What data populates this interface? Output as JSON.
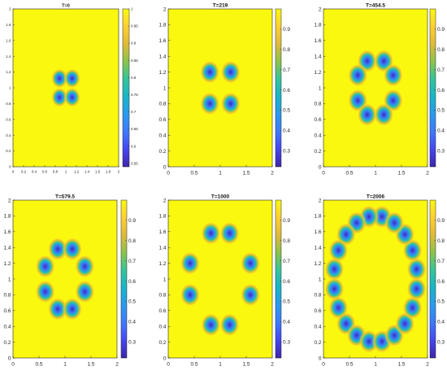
{
  "colors": {
    "background": "#ffffff",
    "field": "#f9f80e",
    "colormap": [
      "#3e26a8",
      "#4746f1",
      "#3f79fe",
      "#2a9aee",
      "#18b5c8",
      "#34c59a",
      "#8bc34a",
      "#dfba3a",
      "#fdd032",
      "#f9f80e"
    ]
  },
  "chart_data": [
    {
      "type": "heatmap",
      "title": "T=0",
      "xlim": [
        0,
        2
      ],
      "ylim": [
        0,
        2
      ],
      "xticks": [
        "0",
        "0.2",
        "0.4",
        "0.6",
        "0.8",
        "1",
        "1.2",
        "1.4",
        "1.6",
        "1.8",
        "2"
      ],
      "yticks": [
        "0",
        "0.2",
        "0.4",
        "0.6",
        "0.8",
        "1",
        "1.2",
        "1.4",
        "1.6",
        "1.8",
        "2"
      ],
      "clim": [
        0.54,
        1.0
      ],
      "colorbar_ticks": [
        "0.55",
        "0.6",
        "0.65",
        "0.7",
        "0.75",
        "0.8",
        "0.85",
        "0.9",
        "0.95",
        "1"
      ],
      "spots": [
        {
          "x": 0.88,
          "y": 1.12
        },
        {
          "x": 1.12,
          "y": 1.12
        },
        {
          "x": 0.88,
          "y": 0.88
        },
        {
          "x": 1.12,
          "y": 0.88
        }
      ]
    },
    {
      "type": "heatmap",
      "title": "T=219",
      "xlim": [
        0,
        2
      ],
      "ylim": [
        0,
        2
      ],
      "xticks": [
        "0",
        "0.5",
        "1",
        "1.5",
        "2"
      ],
      "yticks": [
        "0",
        "0.2",
        "0.4",
        "0.6",
        "0.8",
        "1",
        "1.2",
        "1.4",
        "1.6",
        "1.8",
        "2"
      ],
      "clim": [
        0.22,
        1.0
      ],
      "colorbar_ticks": [
        "0.3",
        "0.4",
        "0.5",
        "0.6",
        "0.7",
        "0.8",
        "0.9"
      ],
      "spots": [
        {
          "x": 0.8,
          "y": 1.2
        },
        {
          "x": 1.2,
          "y": 1.2
        },
        {
          "x": 0.8,
          "y": 0.8
        },
        {
          "x": 1.2,
          "y": 0.8
        }
      ]
    },
    {
      "type": "heatmap",
      "title": "T=454.5",
      "xlim": [
        0,
        2
      ],
      "ylim": [
        0,
        2
      ],
      "xticks": [
        "0",
        "0.5",
        "1",
        "1.5",
        "2"
      ],
      "yticks": [
        "0",
        "0.2",
        "0.4",
        "0.6",
        "0.8",
        "1",
        "1.2",
        "1.4",
        "1.6",
        "1.8",
        "2"
      ],
      "clim": [
        0.22,
        1.0
      ],
      "colorbar_ticks": [
        "0.3",
        "0.4",
        "0.5",
        "0.6",
        "0.7",
        "0.8",
        "0.9"
      ],
      "spots": [
        {
          "x": 0.84,
          "y": 1.34
        },
        {
          "x": 1.16,
          "y": 1.34
        },
        {
          "x": 0.66,
          "y": 1.16
        },
        {
          "x": 1.34,
          "y": 1.16
        },
        {
          "x": 0.66,
          "y": 0.84
        },
        {
          "x": 1.34,
          "y": 0.84
        },
        {
          "x": 0.84,
          "y": 0.66
        },
        {
          "x": 1.16,
          "y": 0.66
        }
      ]
    },
    {
      "type": "heatmap",
      "title": "T=579.5",
      "xlim": [
        0,
        2
      ],
      "ylim": [
        0,
        2
      ],
      "xticks": [
        "0",
        "0.5",
        "1",
        "1.5",
        "2"
      ],
      "yticks": [
        "0",
        "0.2",
        "0.4",
        "0.6",
        "0.8",
        "1",
        "1.2",
        "1.4",
        "1.6",
        "1.8",
        "2"
      ],
      "clim": [
        0.22,
        1.0
      ],
      "colorbar_ticks": [
        "0.3",
        "0.4",
        "0.5",
        "0.6",
        "0.7",
        "0.8",
        "0.9"
      ],
      "spots": [
        {
          "x": 0.86,
          "y": 1.38
        },
        {
          "x": 1.14,
          "y": 1.38
        },
        {
          "x": 0.62,
          "y": 1.16
        },
        {
          "x": 1.38,
          "y": 1.16
        },
        {
          "x": 0.62,
          "y": 0.84
        },
        {
          "x": 1.38,
          "y": 0.84
        },
        {
          "x": 0.86,
          "y": 0.62
        },
        {
          "x": 1.14,
          "y": 0.62
        }
      ]
    },
    {
      "type": "heatmap",
      "title": "T=1000",
      "xlim": [
        0,
        2
      ],
      "ylim": [
        0,
        2
      ],
      "xticks": [
        "0",
        "0.5",
        "1",
        "1.5",
        "2"
      ],
      "yticks": [
        "0",
        "0.2",
        "0.4",
        "0.6",
        "0.8",
        "1",
        "1.2",
        "1.4",
        "1.6",
        "1.8",
        "2"
      ],
      "clim": [
        0.22,
        1.0
      ],
      "colorbar_ticks": [
        "0.3",
        "0.4",
        "0.5",
        "0.6",
        "0.7",
        "0.8",
        "0.9"
      ],
      "spots": [
        {
          "x": 0.82,
          "y": 1.58
        },
        {
          "x": 1.18,
          "y": 1.58
        },
        {
          "x": 0.42,
          "y": 1.2
        },
        {
          "x": 1.58,
          "y": 1.2
        },
        {
          "x": 0.42,
          "y": 0.8
        },
        {
          "x": 1.58,
          "y": 0.8
        },
        {
          "x": 0.82,
          "y": 0.42
        },
        {
          "x": 1.18,
          "y": 0.42
        }
      ]
    },
    {
      "type": "heatmap",
      "title": "T=2006",
      "xlim": [
        0,
        2
      ],
      "ylim": [
        0,
        2
      ],
      "xticks": [
        "0",
        "0.5",
        "1",
        "1.5",
        "2"
      ],
      "yticks": [
        "0",
        "0.2",
        "0.4",
        "0.6",
        "0.8",
        "1",
        "1.2",
        "1.4",
        "1.6",
        "1.8",
        "2"
      ],
      "clim": [
        0.22,
        1.0
      ],
      "colorbar_ticks": [
        "0.3",
        "0.4",
        "0.5",
        "0.6",
        "0.7",
        "0.8",
        "0.9"
      ],
      "ring": {
        "center_x": 1.0,
        "center_y": 1.0,
        "radius": 0.8,
        "count": 20,
        "start_angle_deg": 81
      }
    }
  ]
}
